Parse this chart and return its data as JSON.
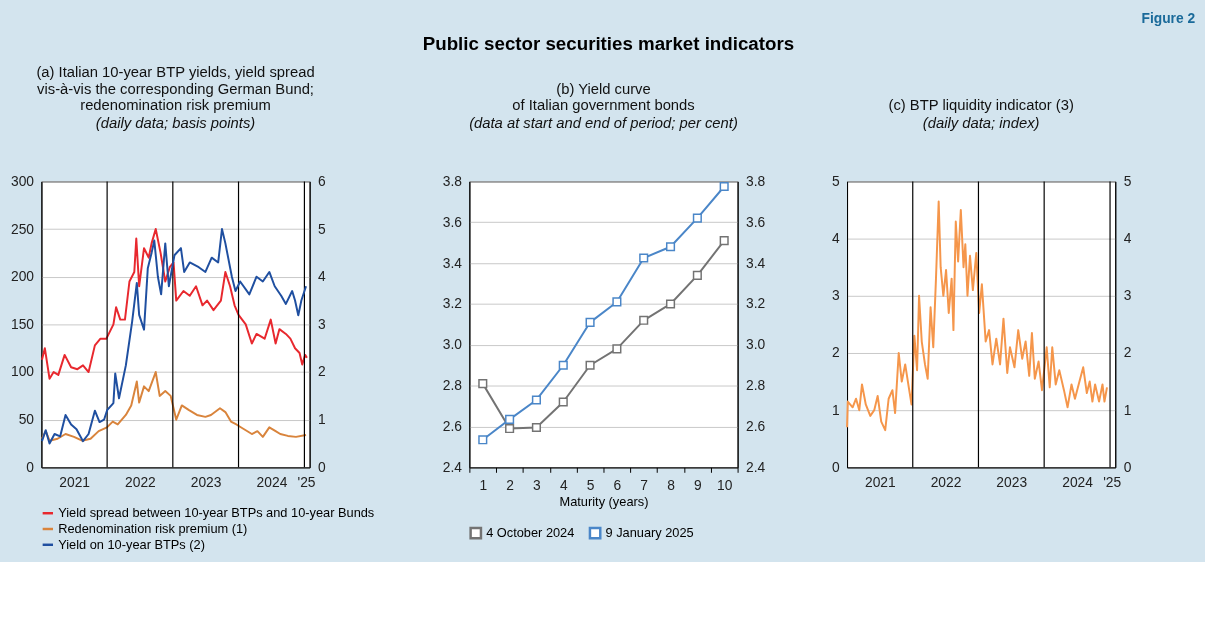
{
  "chart_data": [
    {
      "type": "line",
      "title": "(a) Italian 10-year BTP yields, yield spread\nvis-à-vis the corresponding German Bund;\nredenomination risk premium",
      "subtitle": "(daily data; basis points)",
      "annotations": [
        "Public sector securities market indicators",
        "Figure 2"
      ],
      "xlim": [
        "2021-01-01",
        "2025-01-30"
      ],
      "xticks": [
        {
          "value": "2021-07-02",
          "label": "2021"
        },
        {
          "value": "2022-07-02",
          "label": "2022"
        },
        {
          "value": "2023-07-02",
          "label": "2023"
        },
        {
          "value": "2024-07-02",
          "label": "2024"
        },
        {
          "value": "2025-01-10",
          "label": "'25"
        }
      ],
      "ylim": [
        0,
        300
      ],
      "yticks": [
        0,
        50,
        100,
        150,
        200,
        250,
        300
      ],
      "y2lim": [
        0,
        6
      ],
      "y2ticks": [
        0,
        1,
        2,
        3,
        4,
        5,
        6
      ],
      "grid": "y",
      "legend": "bottom",
      "ref_lines": [
        {
          "axis": "x",
          "value": "2022-01-01",
          "color": "#000000"
        },
        {
          "axis": "x",
          "value": "2023-01-01",
          "color": "#000000"
        },
        {
          "axis": "x",
          "value": "2024-01-01",
          "color": "#000000"
        },
        {
          "axis": "x",
          "value": "2025-01-01",
          "color": "#000000"
        }
      ],
      "series": [
        {
          "name": "Yield spread between 10-year BTPs and 10-year Bunds",
          "color": "#e8282e",
          "x": [
            "2021-01-04",
            "2021-01-20",
            "2021-02-15",
            "2021-03-10",
            "2021-04-05",
            "2021-05-10",
            "2021-06-15",
            "2021-07-20",
            "2021-08-20",
            "2021-09-20",
            "2021-10-25",
            "2021-11-25",
            "2021-12-28",
            "2022-02-05",
            "2022-02-20",
            "2022-03-15",
            "2022-04-10",
            "2022-05-05",
            "2022-06-01",
            "2022-06-12",
            "2022-06-28",
            "2022-07-25",
            "2022-08-20",
            "2022-09-05",
            "2022-09-28",
            "2022-10-25",
            "2022-11-20",
            "2022-12-15",
            "2023-01-05",
            "2023-01-20",
            "2023-03-01",
            "2023-04-05",
            "2023-05-10",
            "2023-06-15",
            "2023-07-10",
            "2023-08-15",
            "2023-09-25",
            "2023-10-20",
            "2023-11-15",
            "2023-12-10",
            "2024-01-01",
            "2024-02-10",
            "2024-03-15",
            "2024-04-10",
            "2024-05-25",
            "2024-06-28",
            "2024-07-25",
            "2024-08-15",
            "2024-09-20",
            "2024-10-15",
            "2024-11-10",
            "2024-12-05",
            "2024-12-20",
            "2025-01-05",
            "2025-01-15"
          ],
          "values": [
            113,
            125,
            93,
            100,
            97,
            118,
            105,
            103,
            107,
            100,
            128,
            135,
            135,
            150,
            168,
            155,
            155,
            195,
            205,
            240,
            190,
            230,
            220,
            235,
            250,
            225,
            195,
            210,
            215,
            175,
            185,
            180,
            190,
            170,
            175,
            165,
            175,
            205,
            190,
            170,
            160,
            150,
            130,
            140,
            135,
            155,
            130,
            145,
            140,
            135,
            125,
            120,
            108,
            118,
            115
          ]
        },
        {
          "name": "Redenomination risk premium (1)",
          "color": "#d9843c",
          "x": [
            "2021-01-04",
            "2021-01-25",
            "2021-02-15",
            "2021-04-01",
            "2021-05-15",
            "2021-07-01",
            "2021-08-15",
            "2021-10-01",
            "2021-11-15",
            "2021-12-31",
            "2022-02-01",
            "2022-03-01",
            "2022-04-15",
            "2022-05-15",
            "2022-06-15",
            "2022-06-28",
            "2022-07-25",
            "2022-08-20",
            "2022-09-28",
            "2022-10-20",
            "2022-11-20",
            "2022-12-20",
            "2023-01-20",
            "2023-02-20",
            "2023-04-01",
            "2023-05-15",
            "2023-07-01",
            "2023-08-01",
            "2023-09-20",
            "2023-10-20",
            "2023-11-20",
            "2023-12-20",
            "2024-02-01",
            "2024-03-15",
            "2024-04-15",
            "2024-05-15",
            "2024-06-20",
            "2024-07-25",
            "2024-08-20",
            "2024-10-01",
            "2024-11-15",
            "2025-01-10"
          ],
          "values": [
            30,
            38,
            28,
            30,
            35,
            32,
            28,
            30,
            38,
            42,
            48,
            45,
            55,
            65,
            90,
            68,
            85,
            80,
            100,
            75,
            80,
            75,
            50,
            65,
            60,
            55,
            53,
            55,
            62,
            58,
            48,
            45,
            40,
            35,
            38,
            32,
            42,
            38,
            35,
            33,
            32,
            34
          ]
        },
        {
          "name": "Yield on 10-year BTPs (2)",
          "color": "#1f4fa0",
          "axis": "y2",
          "x": [
            "2021-01-04",
            "2021-01-25",
            "2021-02-15",
            "2021-03-15",
            "2021-04-15",
            "2021-05-15",
            "2021-06-15",
            "2021-07-15",
            "2021-08-20",
            "2021-09-20",
            "2021-10-25",
            "2021-11-20",
            "2021-12-15",
            "2022-01-01",
            "2022-02-05",
            "2022-02-15",
            "2022-03-08",
            "2022-04-15",
            "2022-05-20",
            "2022-06-15",
            "2022-06-28",
            "2022-07-25",
            "2022-08-15",
            "2022-09-05",
            "2022-09-20",
            "2022-10-10",
            "2022-10-28",
            "2022-11-20",
            "2022-12-10",
            "2023-01-10",
            "2023-02-15",
            "2023-03-05",
            "2023-04-05",
            "2023-05-25",
            "2023-07-01",
            "2023-08-05",
            "2023-09-10",
            "2023-10-01",
            "2023-10-20",
            "2023-11-25",
            "2023-12-15",
            "2024-01-10",
            "2024-03-01",
            "2024-04-10",
            "2024-05-15",
            "2024-06-20",
            "2024-07-20",
            "2024-08-25",
            "2024-09-20",
            "2024-10-25",
            "2024-11-10",
            "2024-11-28",
            "2024-12-15",
            "2025-01-10"
          ],
          "values": [
            0.55,
            0.78,
            0.5,
            0.7,
            0.65,
            1.1,
            0.9,
            0.8,
            0.55,
            0.7,
            1.19,
            0.95,
            1.0,
            1.2,
            1.35,
            1.97,
            1.45,
            2.14,
            3.06,
            3.87,
            3.2,
            2.89,
            4.18,
            4.5,
            4.76,
            4.0,
            3.63,
            4.7,
            3.8,
            4.45,
            4.6,
            4.1,
            4.3,
            4.2,
            4.1,
            4.4,
            4.3,
            5.0,
            4.7,
            4.0,
            3.7,
            3.9,
            3.63,
            4.0,
            3.9,
            4.1,
            3.8,
            3.6,
            3.43,
            3.7,
            3.5,
            3.19,
            3.5,
            3.8
          ]
        }
      ]
    },
    {
      "type": "line",
      "title": "(b) Yield curve\nof Italian government bonds",
      "subtitle": "(data at start and end of period; per cent)",
      "xlabel": "Maturity (years)",
      "categories": [
        "1",
        "2",
        "3",
        "4",
        "5",
        "6",
        "7",
        "8",
        "9",
        "10"
      ],
      "ylim": [
        2.4,
        3.8
      ],
      "yticks": [
        {
          "value": 2.4,
          "label": "2.4"
        },
        {
          "value": 2.6,
          "label": "2.6"
        },
        {
          "value": 2.8,
          "label": "2.8"
        },
        {
          "value": 3.0,
          "label": "3.0"
        },
        {
          "value": 3.2,
          "label": "3.2"
        },
        {
          "value": 3.4,
          "label": "3.4"
        },
        {
          "value": 3.6,
          "label": "3.6"
        },
        {
          "value": 3.8,
          "label": "3.8"
        }
      ],
      "y2lim": [
        2.4,
        3.8
      ],
      "y2ticks": [
        {
          "value": 2.4,
          "label": "2.4"
        },
        {
          "value": 2.6,
          "label": "2.6"
        },
        {
          "value": 2.8,
          "label": "2.8"
        },
        {
          "value": 3.0,
          "label": "3.0"
        },
        {
          "value": 3.2,
          "label": "3.2"
        },
        {
          "value": 3.4,
          "label": "3.4"
        },
        {
          "value": 3.6,
          "label": "3.6"
        },
        {
          "value": 3.8,
          "label": "3.8"
        }
      ],
      "grid": "y",
      "legend": "bottom",
      "marker": "square",
      "series": [
        {
          "name": "4 October 2024",
          "color": "#737373",
          "values": [
            2.81,
            2.59,
            2.595,
            2.72,
            2.9,
            2.98,
            3.12,
            3.2,
            3.34,
            3.51
          ]
        },
        {
          "name": "9 January 2025",
          "color": "#4a86c8",
          "values": [
            2.535,
            2.635,
            2.73,
            2.9,
            3.11,
            3.21,
            3.425,
            3.48,
            3.62,
            3.775
          ]
        }
      ]
    },
    {
      "type": "line",
      "title": "(c) BTP liquidity indicator (3)",
      "subtitle": "(daily data; index)",
      "xlim": [
        "2021-01-01",
        "2025-01-30"
      ],
      "xticks": [
        {
          "value": "2021-07-02",
          "label": "2021"
        },
        {
          "value": "2022-07-02",
          "label": "2022"
        },
        {
          "value": "2023-07-02",
          "label": "2023"
        },
        {
          "value": "2024-07-02",
          "label": "2024"
        },
        {
          "value": "2025-01-10",
          "label": "'25"
        }
      ],
      "ylim": [
        0,
        5
      ],
      "yticks": [
        0,
        1,
        2,
        3,
        4,
        5
      ],
      "y2lim": [
        0,
        5
      ],
      "y2ticks": [
        0,
        1,
        2,
        3,
        4,
        5
      ],
      "grid": "y",
      "ref_lines": [
        {
          "axis": "x",
          "value": "2022-01-01",
          "color": "#000000"
        },
        {
          "axis": "x",
          "value": "2023-01-01",
          "color": "#000000"
        },
        {
          "axis": "x",
          "value": "2024-01-01",
          "color": "#000000"
        },
        {
          "axis": "x",
          "value": "2025-01-01",
          "color": "#000000"
        }
      ],
      "series": [
        {
          "color": "#f5964b",
          "x": [
            "2021-01-01",
            "2021-01-05",
            "2021-02-01",
            "2021-02-20",
            "2021-03-10",
            "2021-03-25",
            "2021-04-15",
            "2021-05-10",
            "2021-06-01",
            "2021-06-20",
            "2021-07-10",
            "2021-08-01",
            "2021-08-20",
            "2021-09-10",
            "2021-09-25",
            "2021-10-15",
            "2021-11-01",
            "2021-11-20",
            "2021-12-10",
            "2021-12-25",
            "2022-01-10",
            "2022-01-25",
            "2022-02-05",
            "2022-02-20",
            "2022-03-10",
            "2022-03-25",
            "2022-04-10",
            "2022-04-25",
            "2022-05-10",
            "2022-05-25",
            "2022-06-05",
            "2022-06-20",
            "2022-07-05",
            "2022-07-20",
            "2022-08-05",
            "2022-08-15",
            "2022-08-28",
            "2022-09-10",
            "2022-09-25",
            "2022-10-10",
            "2022-10-20",
            "2022-11-01",
            "2022-11-15",
            "2022-12-01",
            "2022-12-20",
            "2023-01-05",
            "2023-01-20",
            "2023-02-10",
            "2023-03-01",
            "2023-03-20",
            "2023-04-10",
            "2023-05-01",
            "2023-05-20",
            "2023-06-10",
            "2023-06-25",
            "2023-07-20",
            "2023-08-10",
            "2023-09-01",
            "2023-09-20",
            "2023-10-10",
            "2023-10-25",
            "2023-11-10",
            "2023-12-01",
            "2023-12-20",
            "2024-01-15",
            "2024-02-01",
            "2024-02-15",
            "2024-03-05",
            "2024-03-25",
            "2024-04-20",
            "2024-05-10",
            "2024-06-01",
            "2024-06-20",
            "2024-07-15",
            "2024-08-05",
            "2024-08-25",
            "2024-09-10",
            "2024-09-25",
            "2024-10-10",
            "2024-11-01",
            "2024-11-20",
            "2024-12-01",
            "2024-12-15"
          ],
          "values": [
            0.7,
            1.15,
            1.05,
            1.2,
            1.0,
            1.45,
            1.1,
            0.9,
            1.0,
            1.25,
            0.8,
            0.65,
            1.2,
            1.35,
            0.95,
            2.0,
            1.5,
            1.8,
            1.4,
            1.1,
            2.3,
            1.7,
            3.0,
            2.2,
            1.8,
            1.55,
            2.8,
            2.1,
            3.3,
            4.65,
            3.5,
            3.0,
            3.45,
            2.7,
            3.3,
            2.4,
            4.3,
            3.6,
            4.5,
            3.5,
            3.9,
            3.0,
            3.7,
            3.1,
            3.75,
            2.7,
            3.2,
            2.2,
            2.4,
            1.8,
            2.25,
            1.8,
            2.6,
            1.65,
            2.1,
            1.75,
            2.4,
            1.9,
            2.2,
            1.6,
            2.35,
            1.55,
            1.85,
            1.35,
            2.1,
            1.4,
            2.1,
            1.45,
            1.7,
            1.35,
            1.05,
            1.45,
            1.2,
            1.5,
            1.75,
            1.3,
            1.5,
            1.15,
            1.45,
            1.15,
            1.45,
            1.15,
            1.4
          ]
        }
      ]
    }
  ]
}
